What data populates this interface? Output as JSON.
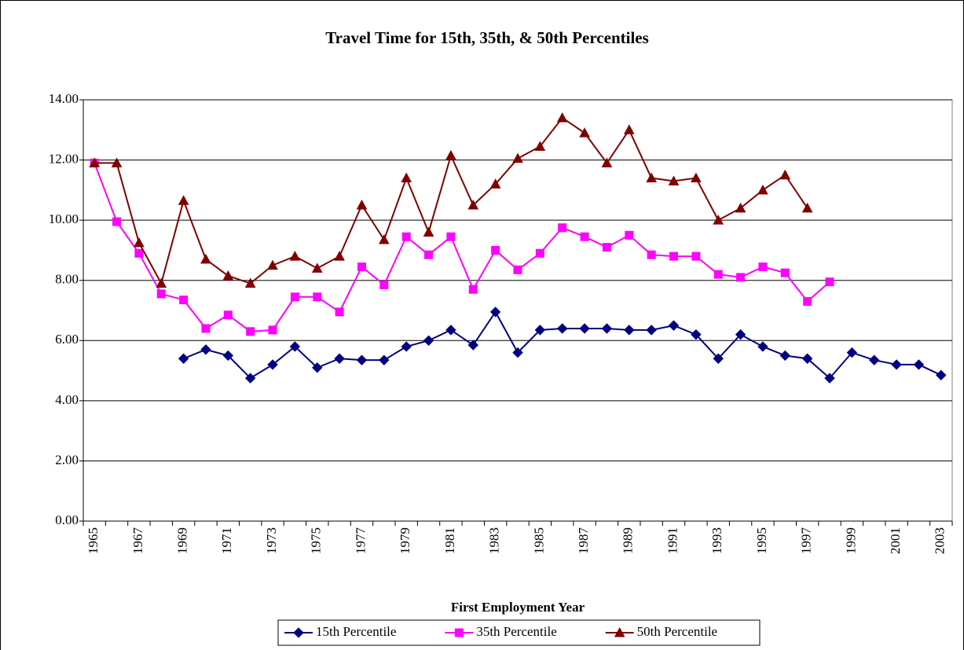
{
  "chart_data": {
    "type": "line",
    "title": "Travel Time for 15th, 35th, & 50th Percentiles",
    "x_label": "First Employment Year",
    "categories": [
      "1965",
      null,
      "1967",
      null,
      "1969",
      null,
      "1971",
      null,
      "1973",
      null,
      "1975",
      null,
      "1977",
      null,
      "1979",
      null,
      "1981",
      null,
      "1983",
      null,
      "1985",
      null,
      "1987",
      null,
      "1989",
      null,
      "1991",
      null,
      "1993",
      null,
      "1995",
      null,
      "1997",
      null,
      "1999",
      null,
      "2001",
      null,
      "2003"
    ],
    "series": [
      {
        "name": "15th Percentile",
        "color": "#000080",
        "marker": "diamond",
        "values": [
          null,
          null,
          null,
          null,
          5.4,
          5.7,
          5.5,
          4.75,
          5.2,
          5.8,
          5.1,
          5.4,
          5.35,
          5.35,
          5.8,
          6.0,
          6.35,
          5.85,
          6.95,
          5.6,
          6.35,
          6.4,
          6.4,
          6.4,
          6.35,
          6.35,
          6.5,
          6.2,
          5.4,
          6.2,
          5.8,
          5.5,
          5.4,
          4.75,
          5.6,
          5.35,
          5.2,
          5.2,
          4.85
        ]
      },
      {
        "name": "35th Percentile",
        "color": "#ff00ff",
        "marker": "square",
        "values": [
          11.9,
          9.95,
          8.9,
          7.55,
          7.35,
          6.4,
          6.85,
          6.3,
          6.35,
          7.45,
          7.45,
          6.95,
          8.45,
          7.85,
          9.45,
          8.85,
          9.45,
          7.7,
          9.0,
          8.35,
          8.9,
          9.75,
          9.45,
          9.1,
          9.5,
          8.85,
          8.8,
          8.8,
          8.2,
          8.1,
          8.45,
          8.25,
          7.3,
          7.95,
          null,
          null,
          null,
          null,
          null
        ]
      },
      {
        "name": "50th Percentile",
        "color": "#800000",
        "marker": "triangle",
        "values": [
          11.9,
          11.9,
          9.25,
          7.9,
          10.65,
          8.7,
          8.15,
          7.9,
          8.5,
          8.8,
          8.4,
          8.8,
          10.5,
          9.35,
          11.4,
          9.6,
          12.15,
          10.5,
          11.2,
          12.05,
          12.45,
          13.4,
          12.9,
          11.9,
          13.0,
          11.4,
          11.3,
          11.4,
          10.0,
          10.4,
          11.0,
          11.5,
          10.4,
          null,
          null,
          null,
          null,
          null,
          null
        ]
      }
    ],
    "ylim": [
      0,
      14
    ],
    "yticks": [
      {
        "value": 0,
        "label": "0.00"
      },
      {
        "value": 2,
        "label": "2.00"
      },
      {
        "value": 4,
        "label": "4.00"
      },
      {
        "value": 6,
        "label": "6.00"
      },
      {
        "value": 8,
        "label": "8.00"
      },
      {
        "value": 10,
        "label": "10.00"
      },
      {
        "value": 12,
        "label": "12.00"
      },
      {
        "value": 14,
        "label": "14.00"
      }
    ],
    "grid": true,
    "legend": "bottom"
  }
}
